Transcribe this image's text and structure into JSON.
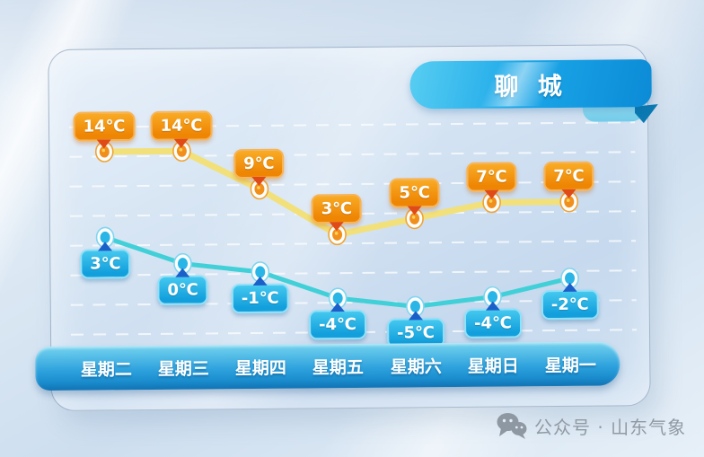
{
  "title": {
    "badge": "聊 城"
  },
  "chart_data": {
    "type": "line",
    "categories": [
      "星期二",
      "星期三",
      "星期四",
      "星期五",
      "星期六",
      "星期日",
      "星期一"
    ],
    "unit": "℃",
    "grid": true,
    "legend_position": "none",
    "series": [
      {
        "id": "high",
        "values": [
          14,
          14,
          9,
          3,
          5,
          7,
          7
        ],
        "labels": [
          "14℃",
          "14℃",
          "9℃",
          "3℃",
          "5℃",
          "7℃",
          "7℃"
        ],
        "line_color": "#f2e07a",
        "point_color": "#f18f1c",
        "ring_color": "#f0a435",
        "badge_color": "#ee8503",
        "pointer_color": "#df4a16"
      },
      {
        "id": "low",
        "values": [
          3,
          0,
          -1,
          -4,
          -5,
          -4,
          -2
        ],
        "labels": [
          "3℃",
          "0℃",
          "-1℃",
          "-4℃",
          "-5℃",
          "-4℃",
          "-2℃"
        ],
        "line_color": "#41d0d8",
        "point_color": "#29b6e6",
        "ring_color": "#7fd6ef",
        "badge_color": "#129fdc",
        "pointer_color": "#1b60c9"
      }
    ]
  },
  "footer": {
    "wechat_label": "公众号 · 山东气象"
  }
}
